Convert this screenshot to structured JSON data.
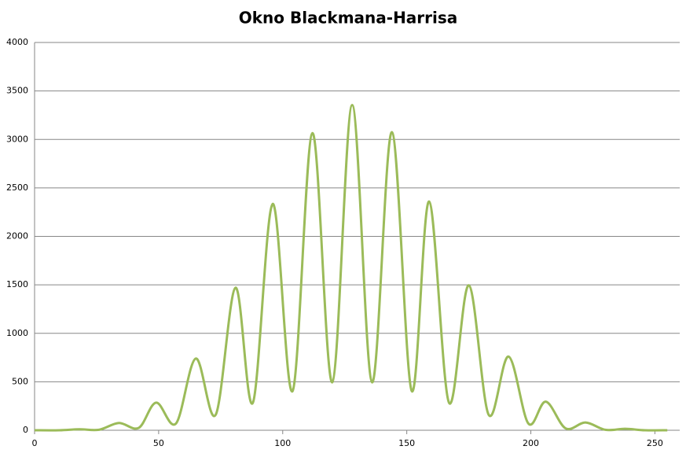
{
  "chart_data": {
    "type": "line",
    "title": "Okno Blackmana-Harrisa",
    "x": [
      0,
      10,
      18,
      26,
      34,
      42,
      49,
      57,
      65,
      73,
      81,
      88,
      96,
      104,
      112,
      120,
      128,
      136,
      144,
      152,
      159,
      167,
      175,
      183,
      191,
      199,
      206,
      214,
      222,
      230,
      238,
      246,
      255
    ],
    "series": [
      {
        "name": "Okno Blackmana-Harrisa",
        "color": "#9bbb59",
        "values": [
          0,
          0,
          10,
          5,
          75,
          25,
          285,
          70,
          740,
          160,
          1470,
          285,
          2335,
          405,
          3065,
          495,
          3355,
          495,
          3075,
          405,
          2360,
          285,
          1495,
          160,
          760,
          70,
          295,
          20,
          80,
          5,
          15,
          0,
          0
        ]
      }
    ],
    "xlim": [
      0,
      260
    ],
    "xticks": [
      0,
      50,
      100,
      150,
      200,
      250
    ],
    "ylim": [
      0,
      4000
    ],
    "yticks": [
      0,
      500,
      1000,
      1500,
      2000,
      2500,
      3000,
      3500,
      4000
    ],
    "grid": true
  }
}
